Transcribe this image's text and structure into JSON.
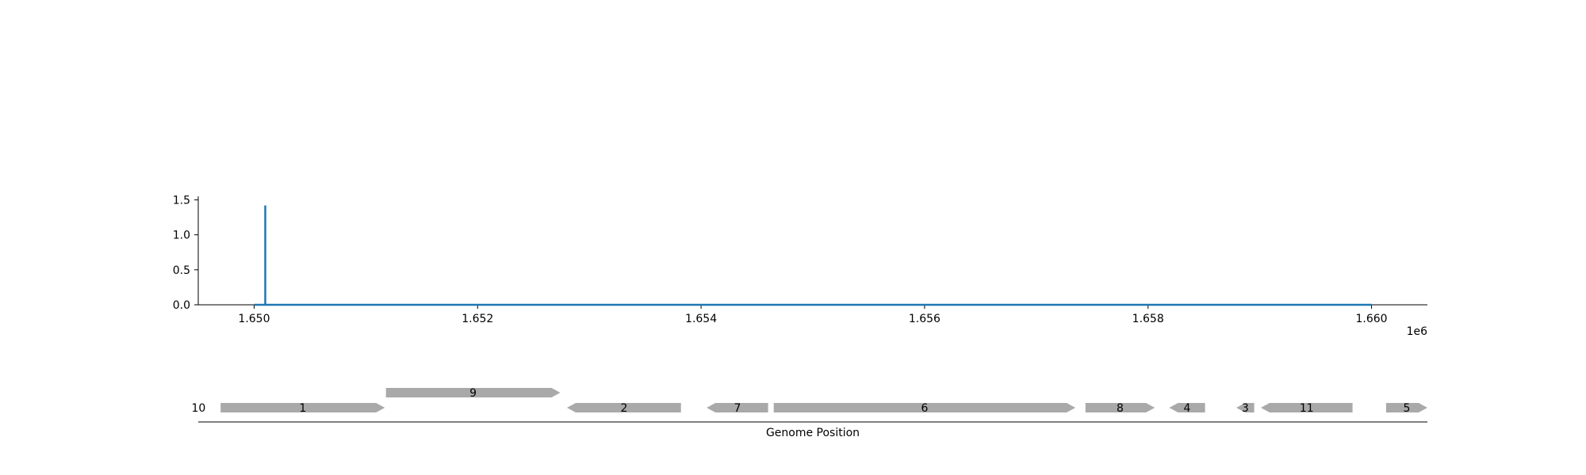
{
  "chart_data": [
    {
      "type": "line",
      "title": "",
      "xlabel": "",
      "ylabel": "",
      "xlim": [
        1649500,
        1660500
      ],
      "ylim": [
        0,
        1.55
      ],
      "x_ticks": [
        1650000,
        1652000,
        1654000,
        1656000,
        1658000,
        1660000
      ],
      "x_tick_labels": [
        "1.650",
        "1.652",
        "1.654",
        "1.656",
        "1.658",
        "1.660"
      ],
      "x_offset_label": "1e6",
      "y_ticks": [
        0,
        0.5,
        1.0,
        1.5
      ],
      "y_tick_labels": [
        "0.0",
        "0.5",
        "1.0",
        "1.5"
      ],
      "grid": false,
      "line_color": "#1f77b4",
      "series": [
        {
          "x": [
            1650000,
            1650100,
            1650100,
            1650100,
            1660000
          ],
          "y": [
            0,
            0,
            1.42,
            0,
            0
          ]
        }
      ]
    },
    {
      "type": "gene_track",
      "xlabel": "Genome Position",
      "feature_color": "#a9a9a9",
      "features": [
        {
          "label": "10",
          "start": 1649680,
          "end": 1649680,
          "strand": 1,
          "row": 0
        },
        {
          "label": "1",
          "start": 1649700,
          "end": 1651170,
          "strand": 1,
          "row": 0
        },
        {
          "label": "9",
          "start": 1651180,
          "end": 1652740,
          "strand": 1,
          "row": 1
        },
        {
          "label": "2",
          "start": 1652800,
          "end": 1653820,
          "strand": -1,
          "row": 0
        },
        {
          "label": "7",
          "start": 1654050,
          "end": 1654600,
          "strand": -1,
          "row": 0
        },
        {
          "label": "6",
          "start": 1654650,
          "end": 1657350,
          "strand": 1,
          "row": 0
        },
        {
          "label": "8",
          "start": 1657440,
          "end": 1658060,
          "strand": 1,
          "row": 0
        },
        {
          "label": "4",
          "start": 1658190,
          "end": 1658510,
          "strand": -1,
          "row": 0
        },
        {
          "label": "3",
          "start": 1658790,
          "end": 1658950,
          "strand": -1,
          "row": 0
        },
        {
          "label": "11",
          "start": 1659010,
          "end": 1659830,
          "strand": -1,
          "row": 0
        },
        {
          "label": "5",
          "start": 1660130,
          "end": 1660500,
          "strand": 1,
          "row": 0
        }
      ]
    }
  ]
}
